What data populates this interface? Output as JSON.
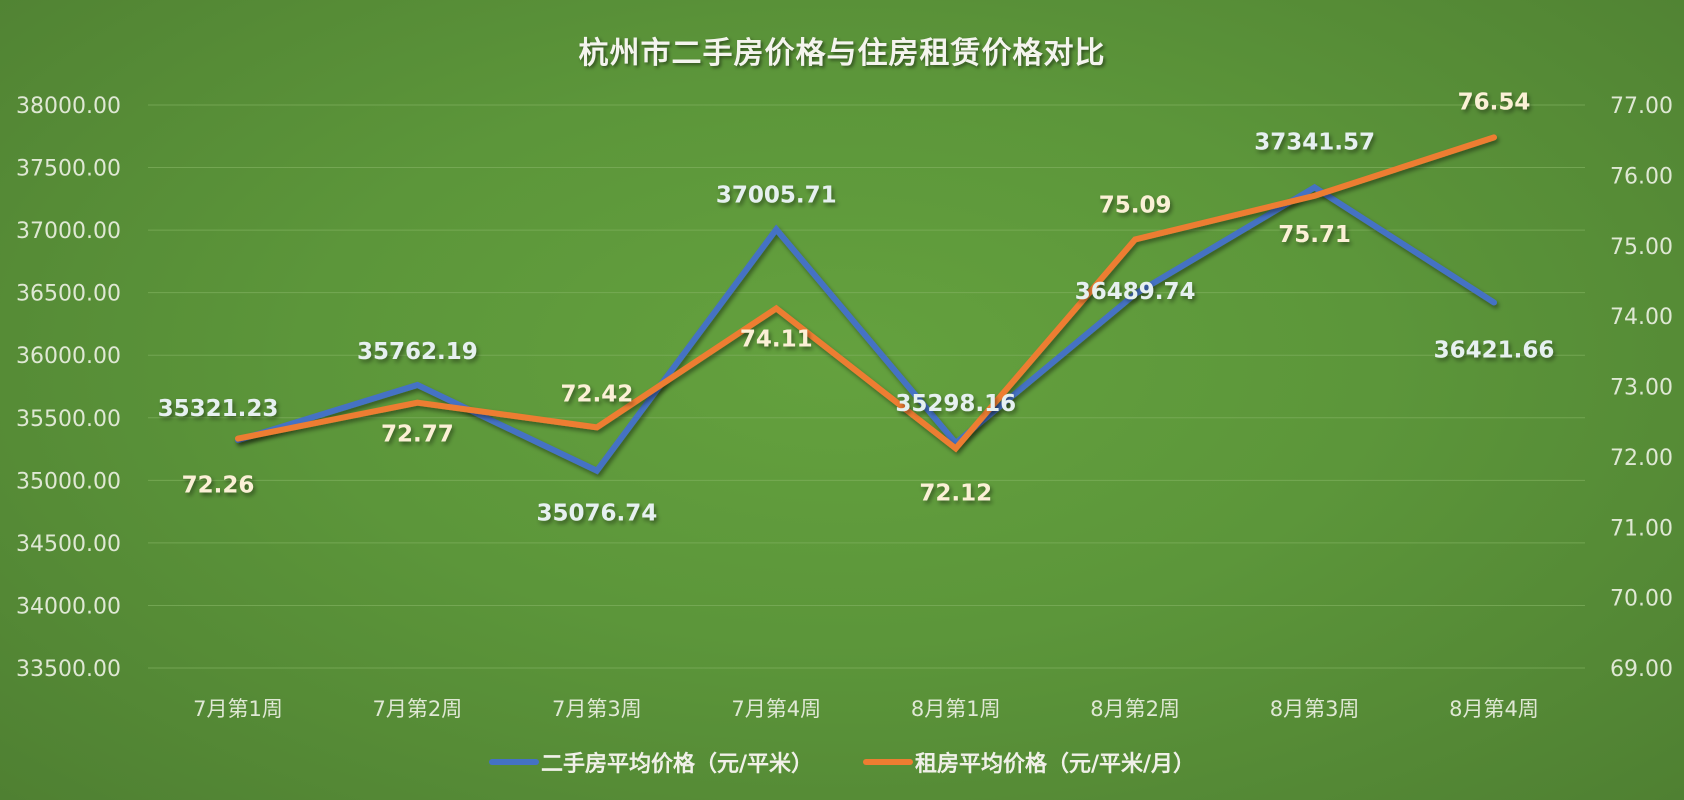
{
  "title": "杭州市二手房价格与住房租赁价格对比",
  "colors": {
    "background": "#5c963a",
    "series_secondhand": "#4472c4",
    "series_rent": "#ed7d31",
    "label_secondhand": "#e6f0f0",
    "label_rent": "#fbf0d6",
    "axis_text": "#dfe8d4",
    "gridline": "#7fb05e"
  },
  "legend": [
    {
      "label": "二手房平均价格（元/平米）",
      "color": "#4472c4"
    },
    {
      "label": "租房平均价格（元/平米/月）",
      "color": "#ed7d31"
    }
  ],
  "chart_data": {
    "type": "line",
    "title": "杭州市二手房价格与住房租赁价格对比",
    "categories": [
      "7月第1周",
      "7月第2周",
      "7月第3周",
      "7月第4周",
      "8月第1周",
      "8月第2周",
      "8月第3周",
      "8月第4周"
    ],
    "series": [
      {
        "name": "二手房平均价格（元/平米）",
        "axis": "left",
        "values": [
          35321.23,
          35762.19,
          35076.74,
          37005.71,
          35298.16,
          36489.74,
          37341.57,
          36421.66
        ],
        "labels": [
          "35321.23",
          "35762.19",
          "35076.74",
          "37005.71",
          "35298.16",
          "36489.74",
          "37341.57",
          "36421.66"
        ]
      },
      {
        "name": "租房平均价格（元/平米/月）",
        "axis": "right",
        "values": [
          72.26,
          72.77,
          72.42,
          74.11,
          72.12,
          75.09,
          75.71,
          76.54
        ],
        "labels": [
          "72.26",
          "72.77",
          "72.42",
          "74.11",
          "72.12",
          "75.09",
          "75.71",
          "76.54"
        ]
      }
    ],
    "y_left": {
      "min": 33500,
      "max": 38000,
      "step": 500,
      "ticks": [
        "38000.00",
        "37500.00",
        "37000.00",
        "36500.00",
        "36000.00",
        "35500.00",
        "35000.00",
        "34500.00",
        "34000.00",
        "33500.00"
      ]
    },
    "y_right": {
      "min": 69,
      "max": 77,
      "step": 1,
      "ticks": [
        "77.00",
        "76.00",
        "75.00",
        "74.00",
        "73.00",
        "72.00",
        "71.00",
        "70.00",
        "69.00"
      ]
    },
    "xlabel": "",
    "ylabel": "",
    "grid": true,
    "legend_position": "bottom"
  }
}
